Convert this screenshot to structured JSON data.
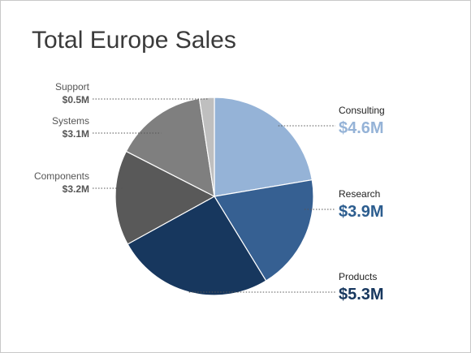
{
  "chart_data": {
    "type": "pie",
    "title": "Total Europe Sales",
    "slices": [
      {
        "label": "Consulting",
        "value": 4.6,
        "value_label": "$4.6M",
        "color": "#95b3d7",
        "label_color": "#95b3d7",
        "side": "right"
      },
      {
        "label": "Research",
        "value": 3.9,
        "value_label": "$3.9M",
        "color": "#366092",
        "label_color": "#2c5d8f",
        "side": "right"
      },
      {
        "label": "Products",
        "value": 5.3,
        "value_label": "$5.3M",
        "color": "#17375e",
        "label_color": "#17375e",
        "side": "right"
      },
      {
        "label": "Components",
        "value": 3.2,
        "value_label": "$3.2M",
        "color": "#595959",
        "label_color": "#555555",
        "side": "left"
      },
      {
        "label": "Systems",
        "value": 3.1,
        "value_label": "$3.1M",
        "color": "#7f7f7f",
        "label_color": "#555555",
        "side": "left"
      },
      {
        "label": "Support",
        "value": 0.5,
        "value_label": "$0.5M",
        "color": "#bfbfbf",
        "label_color": "#555555",
        "side": "left"
      }
    ],
    "start_angle": "12 o'clock",
    "direction": "clockwise",
    "legend": "none"
  }
}
